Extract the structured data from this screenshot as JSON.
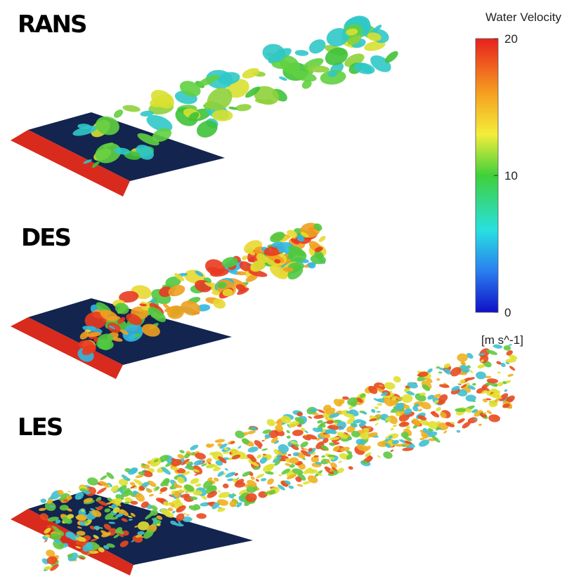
{
  "panels": [
    {
      "label": "RANS"
    },
    {
      "label": "DES"
    },
    {
      "label": "LES"
    }
  ],
  "colorbar": {
    "title": "Water Velocity",
    "lim": [
      0,
      20
    ],
    "ticks": [
      0,
      10,
      20
    ],
    "unit": "[m s^-1]"
  }
}
